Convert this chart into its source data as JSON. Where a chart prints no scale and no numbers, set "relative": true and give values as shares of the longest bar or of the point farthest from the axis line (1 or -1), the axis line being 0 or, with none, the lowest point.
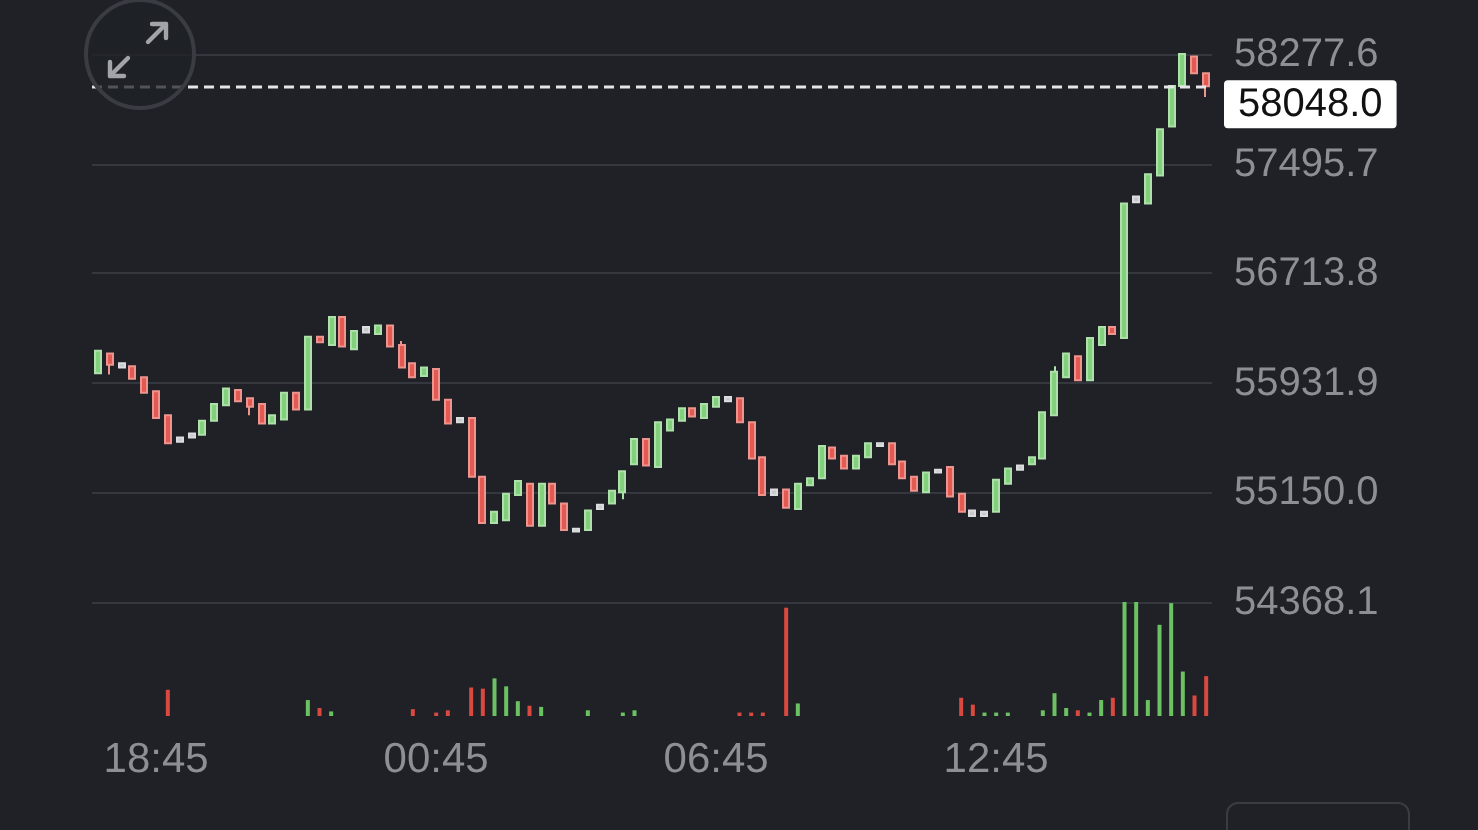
{
  "chart_data": [
    {
      "type": "candlestick",
      "categories": [
        null,
        null,
        null,
        null,
        null,
        null,
        null,
        null,
        null,
        null,
        null,
        null,
        null,
        null,
        null,
        null,
        null,
        null,
        null,
        null,
        null,
        null,
        null,
        null,
        null,
        null,
        null,
        null,
        null,
        null,
        null,
        null,
        null,
        null,
        null,
        null,
        null,
        null,
        null,
        null,
        null,
        null,
        null,
        null,
        null,
        null,
        null,
        null,
        null,
        null,
        null,
        null,
        null,
        null,
        null,
        null,
        null,
        null,
        null,
        null,
        null,
        null,
        null,
        null,
        null,
        null,
        null,
        null,
        null,
        null,
        null,
        null,
        null,
        null,
        null,
        null,
        null,
        null,
        null,
        null,
        null,
        null,
        null,
        null,
        null,
        null,
        null,
        null,
        null,
        null,
        null,
        null,
        null,
        null,
        null,
        null
      ],
      "ohlc": [
        [
          56000,
          56160,
          56000,
          56160
        ],
        [
          56140,
          56140,
          55990,
          56060
        ],
        [
          56070,
          56070,
          56040,
          56040
        ],
        [
          56050,
          56050,
          55960,
          55960
        ],
        [
          55970,
          55970,
          55860,
          55860
        ],
        [
          55870,
          55870,
          55680,
          55680
        ],
        [
          55700,
          55700,
          55500,
          55500
        ],
        [
          55540,
          55540,
          55510,
          55510
        ],
        [
          55540,
          55570,
          55540,
          55570
        ],
        [
          55560,
          55660,
          55560,
          55660
        ],
        [
          55660,
          55780,
          55660,
          55780
        ],
        [
          55770,
          55890,
          55770,
          55890
        ],
        [
          55880,
          55880,
          55800,
          55800
        ],
        [
          55820,
          55820,
          55700,
          55760
        ],
        [
          55780,
          55780,
          55640,
          55640
        ],
        [
          55640,
          55700,
          55640,
          55700
        ],
        [
          55670,
          55860,
          55670,
          55860
        ],
        [
          55860,
          55860,
          55740,
          55740
        ],
        [
          55740,
          56260,
          55740,
          56260
        ],
        [
          56260,
          56260,
          56220,
          56220
        ],
        [
          56200,
          56400,
          56200,
          56400
        ],
        [
          56400,
          56400,
          56190,
          56190
        ],
        [
          56170,
          56300,
          56170,
          56300
        ],
        [
          56290,
          56330,
          56290,
          56330
        ],
        [
          56280,
          56340,
          56280,
          56340
        ],
        [
          56340,
          56340,
          56190,
          56190
        ],
        [
          56200,
          56230,
          56040,
          56040
        ],
        [
          56070,
          56070,
          55970,
          55970
        ],
        [
          55980,
          56040,
          55980,
          56040
        ],
        [
          56030,
          56030,
          55810,
          55810
        ],
        [
          55810,
          55810,
          55640,
          55640
        ],
        [
          55680,
          55680,
          55650,
          55650
        ],
        [
          55680,
          55680,
          55260,
          55260
        ],
        [
          55260,
          55260,
          54930,
          54930
        ],
        [
          54930,
          55010,
          54930,
          55010
        ],
        [
          54950,
          55140,
          54950,
          55140
        ],
        [
          55130,
          55230,
          55130,
          55230
        ],
        [
          55210,
          55210,
          54910,
          54910
        ],
        [
          54910,
          55210,
          54910,
          55210
        ],
        [
          55210,
          55210,
          55070,
          55070
        ],
        [
          55070,
          55070,
          54880,
          54880
        ],
        [
          54890,
          54890,
          54870,
          54870
        ],
        [
          54880,
          55020,
          54880,
          55020
        ],
        [
          55030,
          55060,
          55030,
          55060
        ],
        [
          55070,
          55160,
          55070,
          55160
        ],
        [
          55150,
          55300,
          55100,
          55300
        ],
        [
          55350,
          55530,
          55350,
          55530
        ],
        [
          55530,
          55530,
          55340,
          55340
        ],
        [
          55330,
          55650,
          55330,
          55650
        ],
        [
          55590,
          55670,
          55590,
          55670
        ],
        [
          55660,
          55750,
          55660,
          55750
        ],
        [
          55750,
          55750,
          55690,
          55690
        ],
        [
          55680,
          55780,
          55680,
          55780
        ],
        [
          55760,
          55830,
          55760,
          55830
        ],
        [
          55830,
          55830,
          55800,
          55800
        ],
        [
          55820,
          55820,
          55650,
          55650
        ],
        [
          55650,
          55650,
          55390,
          55390
        ],
        [
          55400,
          55400,
          55130,
          55130
        ],
        [
          55170,
          55170,
          55130,
          55130
        ],
        [
          55170,
          55170,
          55040,
          55040
        ],
        [
          55030,
          55210,
          55030,
          55210
        ],
        [
          55200,
          55250,
          55200,
          55250
        ],
        [
          55250,
          55480,
          55250,
          55480
        ],
        [
          55470,
          55470,
          55390,
          55390
        ],
        [
          55410,
          55410,
          55320,
          55320
        ],
        [
          55320,
          55410,
          55320,
          55410
        ],
        [
          55400,
          55500,
          55400,
          55500
        ],
        [
          55500,
          55500,
          55480,
          55480
        ],
        [
          55500,
          55500,
          55350,
          55350
        ],
        [
          55370,
          55370,
          55250,
          55250
        ],
        [
          55260,
          55260,
          55160,
          55160
        ],
        [
          55150,
          55290,
          55150,
          55290
        ],
        [
          55290,
          55310,
          55290,
          55310
        ],
        [
          55330,
          55330,
          55120,
          55120
        ],
        [
          55140,
          55140,
          55010,
          55010
        ],
        [
          55020,
          55020,
          54980,
          54980
        ],
        [
          54980,
          55010,
          54980,
          55010
        ],
        [
          55010,
          55240,
          55010,
          55240
        ],
        [
          55210,
          55320,
          55210,
          55320
        ],
        [
          55310,
          55340,
          55310,
          55340
        ],
        [
          55350,
          55400,
          55350,
          55400
        ],
        [
          55390,
          55720,
          55390,
          55720
        ],
        [
          55700,
          56050,
          55700,
          56010
        ],
        [
          55970,
          56140,
          55970,
          56140
        ],
        [
          56120,
          56120,
          55950,
          55950
        ],
        [
          55950,
          56250,
          55950,
          56250
        ],
        [
          56200,
          56330,
          56200,
          56330
        ],
        [
          56330,
          56330,
          56280,
          56280
        ],
        [
          56250,
          57210,
          56250,
          57210
        ],
        [
          57220,
          57260,
          57220,
          57260
        ],
        [
          57210,
          57420,
          57210,
          57420
        ],
        [
          57410,
          57740,
          57410,
          57740
        ],
        [
          57760,
          58050,
          57760,
          58050
        ],
        [
          58050,
          58277.6,
          58050,
          58277.6
        ],
        [
          58260,
          58260,
          58140,
          58140
        ],
        [
          58140,
          58140,
          57970,
          58048
        ]
      ],
      "colors": [
        "#82cf7c",
        "#e35a52",
        "#c8c9cc",
        "#e35a52",
        "#e35a52",
        "#e35a52",
        "#e35a52",
        "#c8c9cc",
        "#c8c9cc",
        "#82cf7c",
        "#82cf7c",
        "#82cf7c",
        "#e35a52",
        "#e35a52",
        "#e35a52",
        "#82cf7c",
        "#82cf7c",
        "#e35a52",
        "#82cf7c",
        "#e35a52",
        "#82cf7c",
        "#e35a52",
        "#82cf7c",
        "#c8c9cc",
        "#82cf7c",
        "#e35a52",
        "#e35a52",
        "#e35a52",
        "#82cf7c",
        "#e35a52",
        "#e35a52",
        "#c8c9cc",
        "#e35a52",
        "#e35a52",
        "#82cf7c",
        "#82cf7c",
        "#82cf7c",
        "#e35a52",
        "#82cf7c",
        "#e35a52",
        "#e35a52",
        "#c8c9cc",
        "#82cf7c",
        "#c8c9cc",
        "#82cf7c",
        "#82cf7c",
        "#82cf7c",
        "#e35a52",
        "#82cf7c",
        "#82cf7c",
        "#82cf7c",
        "#e35a52",
        "#82cf7c",
        "#82cf7c",
        "#c8c9cc",
        "#e35a52",
        "#e35a52",
        "#e35a52",
        "#c8c9cc",
        "#e35a52",
        "#82cf7c",
        "#82cf7c",
        "#82cf7c",
        "#e35a52",
        "#e35a52",
        "#82cf7c",
        "#82cf7c",
        "#c8c9cc",
        "#e35a52",
        "#e35a52",
        "#e35a52",
        "#82cf7c",
        "#c8c9cc",
        "#e35a52",
        "#e35a52",
        "#c8c9cc",
        "#c8c9cc",
        "#82cf7c",
        "#82cf7c",
        "#c8c9cc",
        "#82cf7c",
        "#82cf7c",
        "#82cf7c",
        "#82cf7c",
        "#e35a52",
        "#82cf7c",
        "#82cf7c",
        "#e35a52",
        "#82cf7c",
        "#c8c9cc",
        "#82cf7c",
        "#82cf7c",
        "#82cf7c",
        "#82cf7c",
        "#e35a52",
        "#e35a52"
      ],
      "ylim": [
        54368.1,
        58277.6
      ],
      "yticks": [
        54368.1,
        {
          "value": 55150,
          "label": "55150.0"
        },
        55931.9,
        56713.8,
        57495.7,
        58277.6
      ],
      "ref_lines": [
        {
          "axis": "y",
          "value": 58048,
          "label": "58048.0",
          "line_style": "dashed",
          "color": "#e6e6e8"
        }
      ],
      "grid": "y",
      "tick_labels": "y"
    },
    {
      "type": "bar",
      "relative": true,
      "categories": [
        null,
        null,
        null,
        null,
        null,
        "18:45",
        null,
        null,
        null,
        null,
        null,
        null,
        null,
        null,
        null,
        null,
        null,
        null,
        null,
        null,
        null,
        null,
        null,
        null,
        null,
        null,
        null,
        null,
        null,
        "00:45",
        null,
        null,
        null,
        null,
        null,
        null,
        null,
        null,
        null,
        null,
        null,
        null,
        null,
        null,
        null,
        null,
        null,
        null,
        null,
        null,
        null,
        null,
        null,
        "06:45",
        null,
        null,
        null,
        null,
        null,
        null,
        null,
        null,
        null,
        null,
        null,
        null,
        null,
        null,
        null,
        null,
        null,
        null,
        null,
        null,
        null,
        null,
        null,
        "12:45",
        null,
        null,
        null,
        null,
        null,
        null,
        null,
        null,
        null,
        null,
        null,
        null,
        null,
        null,
        null,
        null,
        null,
        null
      ],
      "values": [
        null,
        null,
        null,
        null,
        null,
        null,
        0.23,
        null,
        null,
        null,
        null,
        null,
        null,
        null,
        null,
        null,
        null,
        null,
        0.14,
        0.07,
        0.04,
        null,
        null,
        null,
        null,
        null,
        null,
        0.06,
        null,
        0.03,
        0.05,
        null,
        0.25,
        0.24,
        0.33,
        0.26,
        0.13,
        0.09,
        0.08,
        null,
        null,
        null,
        0.05,
        null,
        null,
        0.03,
        0.05,
        null,
        null,
        null,
        null,
        null,
        null,
        null,
        null,
        0.03,
        0.03,
        0.03,
        null,
        0.95,
        0.11,
        null,
        null,
        null,
        null,
        null,
        null,
        null,
        null,
        null,
        null,
        null,
        null,
        null,
        0.16,
        0.1,
        0.03,
        0.03,
        0.03,
        null,
        null,
        0.05,
        0.2,
        0.07,
        0.05,
        0.03,
        0.14,
        0.16,
        1,
        1,
        0.14,
        0.8,
        0.99,
        0.39,
        0.18,
        0.35
      ],
      "colors": [
        null,
        null,
        null,
        null,
        null,
        null,
        "#d9493f",
        null,
        null,
        null,
        null,
        null,
        null,
        null,
        null,
        null,
        null,
        null,
        "#6cc262",
        "#d9493f",
        "#6cc262",
        null,
        null,
        null,
        null,
        null,
        null,
        "#d9493f",
        null,
        "#d9493f",
        "#d9493f",
        null,
        "#d9493f",
        "#d9493f",
        "#6cc262",
        "#6cc262",
        "#6cc262",
        "#d9493f",
        "#6cc262",
        null,
        null,
        null,
        "#6cc262",
        null,
        null,
        "#6cc262",
        "#6cc262",
        null,
        null,
        null,
        null,
        null,
        null,
        null,
        null,
        "#d9493f",
        "#d9493f",
        "#d9493f",
        null,
        "#d9493f",
        "#6cc262",
        null,
        null,
        null,
        null,
        null,
        null,
        null,
        null,
        null,
        null,
        null,
        null,
        null,
        "#d9493f",
        "#d9493f",
        "#6cc262",
        "#6cc262",
        "#6cc262",
        null,
        null,
        "#6cc262",
        "#6cc262",
        "#6cc262",
        "#d9493f",
        "#6cc262",
        "#6cc262",
        "#d9493f",
        "#6cc262",
        "#6cc262",
        "#6cc262",
        "#6cc262",
        "#6cc262",
        "#6cc262",
        "#d9493f",
        "#d9493f"
      ]
    }
  ]
}
